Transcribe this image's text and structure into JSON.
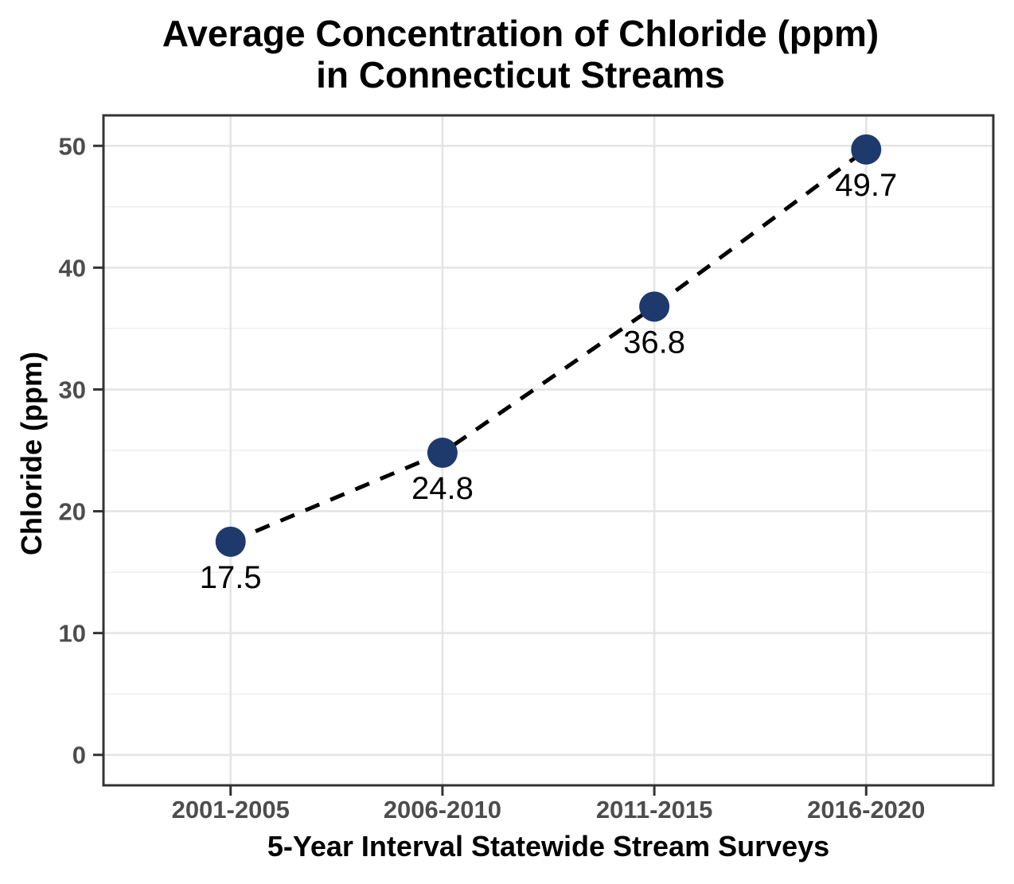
{
  "title": {
    "line1": "Average Concentration of Chloride (ppm)",
    "line2": "in Connecticut Streams"
  },
  "chart_data": {
    "type": "line",
    "title": "Average Concentration of Chloride (ppm) in Connecticut Streams",
    "xlabel": "5-Year Interval Statewide Stream Surveys",
    "ylabel": "Chloride (ppm)",
    "categories": [
      "2001-2005",
      "2006-2010",
      "2011-2015",
      "2016-2020"
    ],
    "values": [
      17.5,
      24.8,
      36.8,
      49.7
    ],
    "point_labels": [
      "17.5",
      "24.8",
      "36.8",
      "49.7"
    ],
    "y_ticks": [
      "0",
      "10",
      "20",
      "30",
      "40",
      "50"
    ],
    "y_tick_values": [
      0,
      10,
      20,
      30,
      40,
      50
    ],
    "ylim": [
      -2.5,
      52.5
    ],
    "line_style": "dashed",
    "legend": "none",
    "grid": "horizontal major+minor, vertical major at categories",
    "colors": {
      "point": "#1e3a6d",
      "line": "#000000",
      "grid_major": "#e4e4e4",
      "grid_minor": "#efefef",
      "tick_label": "#4d4d4d",
      "axis_text": "#000000",
      "panel_border": "#333333",
      "background": "#ffffff"
    }
  }
}
